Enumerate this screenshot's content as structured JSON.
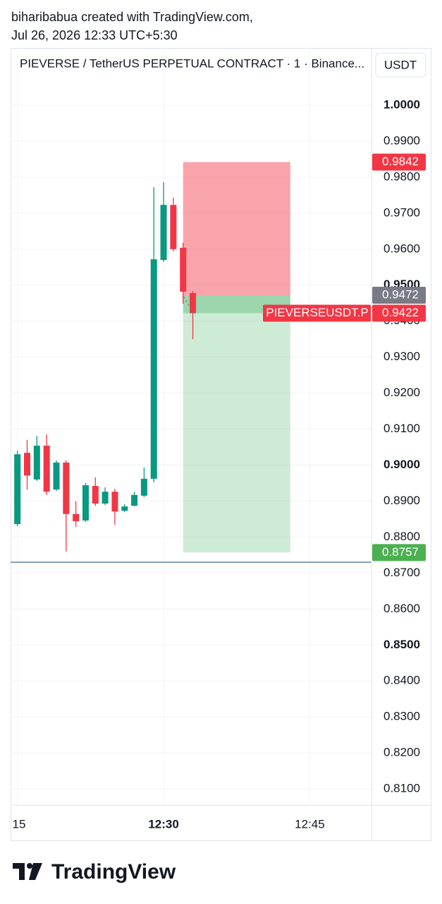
{
  "header": {
    "line1": "biharibabua created with TradingView.com,",
    "line2": "Jul 26, 2026 12:33 UTC+5:30"
  },
  "chart_data": {
    "type": "candlestick",
    "title": "PIEVERSE / TetherUS PERPETUAL CONTRACT · 1 · Binance...",
    "currency_button": "USDT",
    "symbol": "PIEVERSEUSDT.P",
    "up_color": "#089981",
    "down_color": "#f23645",
    "x": [
      "12:15",
      "12:16",
      "12:17",
      "12:18",
      "12:19",
      "12:20",
      "12:21",
      "12:22",
      "12:23",
      "12:24",
      "12:25",
      "12:26",
      "12:27",
      "12:28",
      "12:29",
      "12:30",
      "12:31",
      "12:32",
      "12:33"
    ],
    "open": [
      0.8836,
      0.9034,
      0.896,
      0.9054,
      0.8932,
      0.9007,
      0.8864,
      0.8846,
      0.8942,
      0.8893,
      0.8926,
      0.8873,
      0.8887,
      0.8915,
      0.8962,
      0.957,
      0.9723,
      0.9604,
      0.9478
    ],
    "high": [
      0.904,
      0.907,
      0.9081,
      0.9085,
      0.9013,
      0.9013,
      0.8899,
      0.895,
      0.8966,
      0.8938,
      0.8934,
      0.8891,
      0.8925,
      0.8993,
      0.9772,
      0.9786,
      0.9743,
      0.9618,
      0.9484
    ],
    "low": [
      0.883,
      0.8932,
      0.8956,
      0.8917,
      0.8928,
      0.876,
      0.8828,
      0.8842,
      0.8887,
      0.8889,
      0.8834,
      0.8869,
      0.8885,
      0.8911,
      0.8952,
      0.9565,
      0.9594,
      0.9448,
      0.935
    ],
    "close": [
      0.903,
      0.8971,
      0.9054,
      0.8926,
      0.9007,
      0.8864,
      0.8844,
      0.8944,
      0.8893,
      0.8926,
      0.8871,
      0.8885,
      0.8917,
      0.8962,
      0.9572,
      0.9723,
      0.96,
      0.9482,
      0.9422
    ],
    "xlim": [
      "12:14:18",
      "12:51:20"
    ],
    "xticks": [
      {
        "value": "12:15",
        "label": "15"
      },
      "12:30",
      "12:45"
    ],
    "ylim": [
      0.8055,
      1.0159
    ],
    "yticks": [
      {
        "value": 1.0,
        "label": "1.0000"
      },
      {
        "value": 0.99,
        "label": "0.9900"
      },
      {
        "value": 0.98,
        "label": "0.9800"
      },
      {
        "value": 0.97,
        "label": "0.9700"
      },
      {
        "value": 0.96,
        "label": "0.9600"
      },
      {
        "value": 0.95,
        "label": "0.9500"
      },
      {
        "value": 0.94,
        "label": "0.9400"
      },
      {
        "value": 0.93,
        "label": "0.9300"
      },
      {
        "value": 0.92,
        "label": "0.9200"
      },
      {
        "value": 0.91,
        "label": "0.9100"
      },
      {
        "value": 0.9,
        "label": "0.9000"
      },
      {
        "value": 0.89,
        "label": "0.8900"
      },
      {
        "value": 0.88,
        "label": "0.8800"
      },
      {
        "value": 0.87,
        "label": "0.8700"
      },
      {
        "value": 0.86,
        "label": "0.8600"
      },
      {
        "value": 0.85,
        "label": "0.8500"
      },
      {
        "value": 0.84,
        "label": "0.8400"
      },
      {
        "value": 0.83,
        "label": "0.8300"
      },
      {
        "value": 0.82,
        "label": "0.8200"
      },
      {
        "value": 0.81,
        "label": "0.8100"
      }
    ],
    "grid": true,
    "position": {
      "start": "12:32",
      "end": "12:43",
      "entry": 0.9472,
      "stop": 0.9842,
      "target": 0.8757
    },
    "hline": {
      "value": 0.873,
      "color": "#2a5b8c"
    }
  },
  "footer": {
    "brand": "TradingView"
  }
}
